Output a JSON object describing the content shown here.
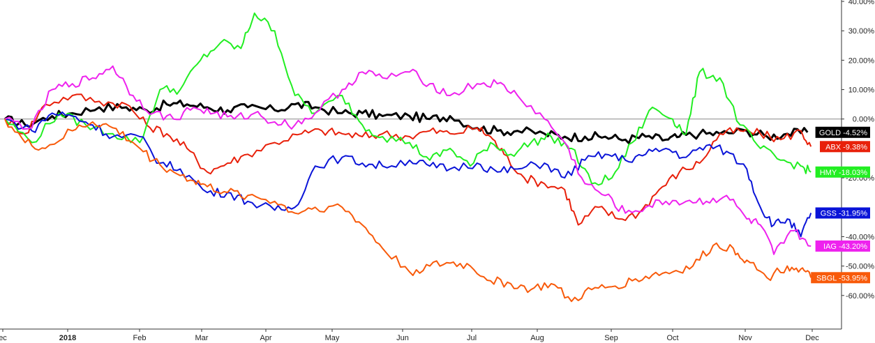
{
  "chart_data": {
    "type": "line",
    "title": "",
    "xlabel": "",
    "ylabel": "",
    "ylim": [
      -70,
      40
    ],
    "y_axis_position": "right",
    "grid": false,
    "zero_line": true,
    "x_ticks": [
      {
        "label": "ec",
        "pos": 0
      },
      {
        "label": "2018",
        "pos": 1,
        "bold": true
      },
      {
        "label": "Feb",
        "pos": 2
      },
      {
        "label": "Mar",
        "pos": 3
      },
      {
        "label": "Apr",
        "pos": 4
      },
      {
        "label": "May",
        "pos": 5
      },
      {
        "label": "Jun",
        "pos": 6
      },
      {
        "label": "Jul",
        "pos": 7
      },
      {
        "label": "Aug",
        "pos": 8
      },
      {
        "label": "Sep",
        "pos": 9
      },
      {
        "label": "Oct",
        "pos": 10
      },
      {
        "label": "Nov",
        "pos": 11
      },
      {
        "label": "Dec",
        "pos": 12
      }
    ],
    "y_ticks": [
      {
        "label": "40.00%",
        "value": 40
      },
      {
        "label": "30.00%",
        "value": 30
      },
      {
        "label": "20.00%",
        "value": 20
      },
      {
        "label": "10.00%",
        "value": 10
      },
      {
        "label": "0.00%",
        "value": 0
      },
      {
        "label": "-20.00%",
        "value": -20
      },
      {
        "label": "-40.00%",
        "value": -40
      },
      {
        "label": "-50.00%",
        "value": -50
      },
      {
        "label": "-60.00%",
        "value": -60
      }
    ],
    "series": [
      {
        "name": "GOLD",
        "tag": "-4.52%",
        "last": -4.52,
        "color": "#000000",
        "width": 3,
        "points": [
          [
            0,
            0
          ],
          [
            0.3,
            -2
          ],
          [
            0.7,
            1
          ],
          [
            1,
            2
          ],
          [
            1.4,
            4
          ],
          [
            1.8,
            4
          ],
          [
            2.1,
            3
          ],
          [
            2.4,
            5
          ],
          [
            2.7,
            5
          ],
          [
            3,
            4
          ],
          [
            3.3,
            3
          ],
          [
            3.6,
            4
          ],
          [
            4,
            3
          ],
          [
            4.3,
            5
          ],
          [
            4.6,
            4
          ],
          [
            5,
            2
          ],
          [
            5.3,
            2
          ],
          [
            5.6,
            1
          ],
          [
            6,
            1
          ],
          [
            6.3,
            0
          ],
          [
            6.6,
            1
          ],
          [
            7,
            -3
          ],
          [
            7.3,
            -4
          ],
          [
            7.6,
            -4
          ],
          [
            8,
            -5
          ],
          [
            8.3,
            -6
          ],
          [
            8.6,
            -6
          ],
          [
            8.9,
            -6
          ],
          [
            9.2,
            -7
          ],
          [
            9.5,
            -6
          ],
          [
            9.8,
            -7
          ],
          [
            10,
            -6
          ],
          [
            10.3,
            -5
          ],
          [
            10.6,
            -5
          ],
          [
            11,
            -4
          ],
          [
            11.3,
            -6
          ],
          [
            11.6,
            -5
          ],
          [
            11.9,
            -4.52
          ]
        ]
      },
      {
        "name": "ABX",
        "tag": "-9.38%",
        "last": -9.38,
        "color": "#e8200a",
        "width": 2,
        "points": [
          [
            0,
            0
          ],
          [
            0.3,
            -5
          ],
          [
            0.6,
            5
          ],
          [
            1,
            8
          ],
          [
            1.4,
            6
          ],
          [
            1.8,
            5
          ],
          [
            2.1,
            -2
          ],
          [
            2.4,
            -5
          ],
          [
            2.7,
            -10
          ],
          [
            3,
            -18
          ],
          [
            3.3,
            -15
          ],
          [
            3.6,
            -12
          ],
          [
            4,
            -8
          ],
          [
            4.4,
            -5
          ],
          [
            4.7,
            -4
          ],
          [
            5,
            -5
          ],
          [
            5.3,
            -6
          ],
          [
            5.6,
            -5
          ],
          [
            6,
            -6
          ],
          [
            6.3,
            -4
          ],
          [
            6.6,
            -5
          ],
          [
            7,
            -3
          ],
          [
            7.2,
            -6
          ],
          [
            7.4,
            -12
          ],
          [
            7.7,
            -20
          ],
          [
            8,
            -22
          ],
          [
            8.3,
            -24
          ],
          [
            8.5,
            -36
          ],
          [
            8.8,
            -30
          ],
          [
            9.1,
            -34
          ],
          [
            9.4,
            -32
          ],
          [
            9.7,
            -24
          ],
          [
            10,
            -18
          ],
          [
            10.3,
            -15
          ],
          [
            10.6,
            -5
          ],
          [
            10.9,
            -4
          ],
          [
            11.2,
            -5
          ],
          [
            11.5,
            -7
          ],
          [
            11.8,
            -4
          ],
          [
            11.95,
            -9.38
          ]
        ]
      },
      {
        "name": "HMY",
        "tag": "-18.03%",
        "last": -18.03,
        "color": "#22ee22",
        "width": 2,
        "points": [
          [
            0,
            0
          ],
          [
            0.4,
            -8
          ],
          [
            0.8,
            2
          ],
          [
            1.2,
            -2
          ],
          [
            1.6,
            -5
          ],
          [
            2,
            -8
          ],
          [
            2.3,
            10
          ],
          [
            2.6,
            10
          ],
          [
            2.9,
            20
          ],
          [
            3.2,
            26
          ],
          [
            3.5,
            24
          ],
          [
            3.7,
            36
          ],
          [
            4,
            30
          ],
          [
            4.3,
            8
          ],
          [
            4.6,
            2
          ],
          [
            5,
            8
          ],
          [
            5.3,
            -2
          ],
          [
            5.6,
            -6
          ],
          [
            6,
            -8
          ],
          [
            6.3,
            -14
          ],
          [
            6.6,
            -10
          ],
          [
            6.9,
            -16
          ],
          [
            7.2,
            -8
          ],
          [
            7.5,
            -12
          ],
          [
            7.8,
            -8
          ],
          [
            8.1,
            -6
          ],
          [
            8.4,
            -10
          ],
          [
            8.7,
            -22
          ],
          [
            9,
            -20
          ],
          [
            9.3,
            -8
          ],
          [
            9.6,
            4
          ],
          [
            9.9,
            0
          ],
          [
            10.1,
            -5
          ],
          [
            10.3,
            16
          ],
          [
            10.6,
            14
          ],
          [
            10.9,
            -2
          ],
          [
            11.2,
            -10
          ],
          [
            11.5,
            -14
          ],
          [
            11.8,
            -16
          ],
          [
            11.95,
            -18.03
          ]
        ]
      },
      {
        "name": "GSS",
        "tag": "-31.95%",
        "last": -31.95,
        "color": "#0a14d8",
        "width": 2,
        "points": [
          [
            0,
            0
          ],
          [
            0.4,
            -4
          ],
          [
            0.7,
            2
          ],
          [
            1,
            1
          ],
          [
            1.3,
            -2
          ],
          [
            1.6,
            -6
          ],
          [
            2,
            -6
          ],
          [
            2.3,
            -15
          ],
          [
            2.6,
            -17
          ],
          [
            3,
            -25
          ],
          [
            3.3,
            -25
          ],
          [
            3.6,
            -28
          ],
          [
            4,
            -31
          ],
          [
            4.3,
            -30
          ],
          [
            4.6,
            -16
          ],
          [
            5,
            -13
          ],
          [
            5.3,
            -15
          ],
          [
            5.6,
            -16
          ],
          [
            6,
            -14
          ],
          [
            6.3,
            -16
          ],
          [
            6.6,
            -17
          ],
          [
            7,
            -15
          ],
          [
            7.3,
            -18
          ],
          [
            7.6,
            -17
          ],
          [
            8,
            -15
          ],
          [
            8.3,
            -20
          ],
          [
            8.6,
            -14
          ],
          [
            8.9,
            -12
          ],
          [
            9.2,
            -14
          ],
          [
            9.5,
            -12
          ],
          [
            9.8,
            -10
          ],
          [
            10.1,
            -13
          ],
          [
            10.4,
            -9
          ],
          [
            10.7,
            -11
          ],
          [
            11,
            -17
          ],
          [
            11.2,
            -30
          ],
          [
            11.4,
            -36
          ],
          [
            11.6,
            -34
          ],
          [
            11.8,
            -40
          ],
          [
            11.95,
            -31.95
          ]
        ]
      },
      {
        "name": "IAG",
        "tag": "-43.20%",
        "last": -43.2,
        "color": "#ee22ee",
        "width": 2,
        "points": [
          [
            0,
            0
          ],
          [
            0.4,
            -3
          ],
          [
            0.7,
            10
          ],
          [
            1,
            12
          ],
          [
            1.3,
            14
          ],
          [
            1.6,
            18
          ],
          [
            1.9,
            8
          ],
          [
            2.2,
            2
          ],
          [
            2.5,
            0
          ],
          [
            2.8,
            4
          ],
          [
            3.1,
            2
          ],
          [
            3.4,
            0
          ],
          [
            3.7,
            2
          ],
          [
            4,
            -1
          ],
          [
            4.3,
            -2
          ],
          [
            4.6,
            2
          ],
          [
            5,
            10
          ],
          [
            5.3,
            16
          ],
          [
            5.6,
            14
          ],
          [
            6,
            16
          ],
          [
            6.3,
            12
          ],
          [
            6.6,
            8
          ],
          [
            7,
            12
          ],
          [
            7.3,
            12
          ],
          [
            7.6,
            8
          ],
          [
            8,
            0
          ],
          [
            8.3,
            -8
          ],
          [
            8.6,
            -22
          ],
          [
            8.9,
            -26
          ],
          [
            9.2,
            -32
          ],
          [
            9.5,
            -30
          ],
          [
            9.8,
            -28
          ],
          [
            10.1,
            -28
          ],
          [
            10.4,
            -28
          ],
          [
            10.7,
            -26
          ],
          [
            11,
            -34
          ],
          [
            11.2,
            -36
          ],
          [
            11.4,
            -46
          ],
          [
            11.7,
            -38
          ],
          [
            11.95,
            -43.2
          ]
        ]
      },
      {
        "name": "SBGL",
        "tag": "-53.95%",
        "last": -53.95,
        "color": "#f85a0a",
        "width": 2,
        "points": [
          [
            0,
            0
          ],
          [
            0.3,
            -8
          ],
          [
            0.6,
            -10
          ],
          [
            1,
            -4
          ],
          [
            1.3,
            -1
          ],
          [
            1.6,
            -3
          ],
          [
            1.9,
            -8
          ],
          [
            2.2,
            -14
          ],
          [
            2.5,
            -18
          ],
          [
            2.8,
            -21
          ],
          [
            3,
            -23
          ],
          [
            3.3,
            -25
          ],
          [
            3.6,
            -26
          ],
          [
            4,
            -28
          ],
          [
            4.3,
            -32
          ],
          [
            4.6,
            -30
          ],
          [
            5,
            -30
          ],
          [
            5.3,
            -36
          ],
          [
            5.6,
            -44
          ],
          [
            6,
            -52
          ],
          [
            6.3,
            -50
          ],
          [
            6.6,
            -49
          ],
          [
            6.9,
            -50
          ],
          [
            7.2,
            -55
          ],
          [
            7.5,
            -56
          ],
          [
            7.8,
            -58
          ],
          [
            8.1,
            -56
          ],
          [
            8.4,
            -62
          ],
          [
            8.7,
            -58
          ],
          [
            9,
            -57
          ],
          [
            9.3,
            -55
          ],
          [
            9.6,
            -53
          ],
          [
            9.9,
            -52
          ],
          [
            10.2,
            -50
          ],
          [
            10.5,
            -43
          ],
          [
            10.8,
            -44
          ],
          [
            11,
            -48
          ],
          [
            11.3,
            -54
          ],
          [
            11.6,
            -50
          ],
          [
            11.8,
            -51
          ],
          [
            11.95,
            -53.95
          ]
        ]
      }
    ]
  }
}
